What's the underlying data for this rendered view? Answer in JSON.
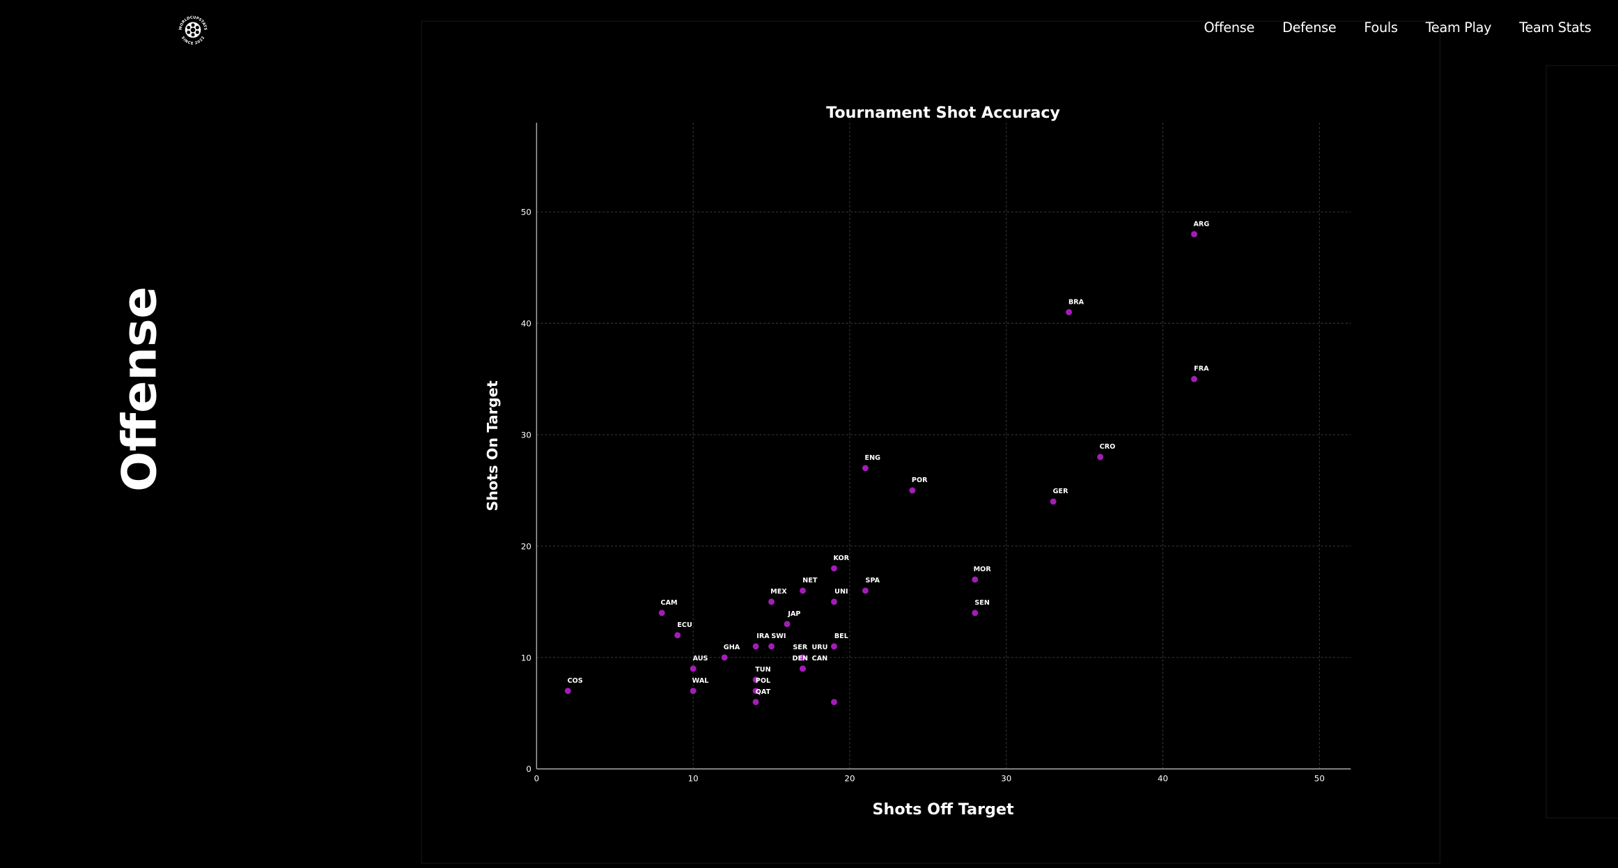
{
  "nav": {
    "items": [
      "Offense",
      "Defense",
      "Fouls",
      "Team Play",
      "Team Stats"
    ]
  },
  "logo": {
    "text_top": "WORLDCUPSTATS",
    "text_bottom": "SINCE 2022"
  },
  "page_title": "Offense",
  "colors": {
    "point": "#a41cb8",
    "grid": "#444444",
    "axis": "#aaaaaa",
    "background": "#000000"
  },
  "chart_data": {
    "type": "scatter",
    "title": "Tournament Shot Accuracy",
    "xlabel": "Shots Off Target",
    "ylabel": "Shots On Target",
    "xlim": [
      0,
      52
    ],
    "ylim": [
      0,
      58
    ],
    "xticks": [
      0,
      10,
      20,
      30,
      40,
      50
    ],
    "yticks": [
      0,
      10,
      20,
      30,
      40,
      50
    ],
    "grid": true,
    "points": [
      {
        "label": "ARG",
        "x": 42,
        "y": 48
      },
      {
        "label": "BRA",
        "x": 34,
        "y": 41
      },
      {
        "label": "FRA",
        "x": 42,
        "y": 35
      },
      {
        "label": "CRO",
        "x": 36,
        "y": 28
      },
      {
        "label": "ENG",
        "x": 21,
        "y": 27
      },
      {
        "label": "POR",
        "x": 24,
        "y": 25
      },
      {
        "label": "GER",
        "x": 33,
        "y": 24
      },
      {
        "label": "KOR",
        "x": 19,
        "y": 18
      },
      {
        "label": "MOR",
        "x": 28,
        "y": 17
      },
      {
        "label": "NET",
        "x": 17,
        "y": 16
      },
      {
        "label": "SPA",
        "x": 21,
        "y": 16
      },
      {
        "label": "MEX",
        "x": 15,
        "y": 15
      },
      {
        "label": "UNI",
        "x": 19,
        "y": 15
      },
      {
        "label": "CAM",
        "x": 8,
        "y": 14
      },
      {
        "label": "SEN",
        "x": 28,
        "y": 14
      },
      {
        "label": "JAP",
        "x": 16,
        "y": 13
      },
      {
        "label": "ECU",
        "x": 9,
        "y": 12
      },
      {
        "label": "IRA",
        "x": 14,
        "y": 11
      },
      {
        "label": "SWI",
        "x": 15,
        "y": 11
      },
      {
        "label": "BEL",
        "x": 19,
        "y": 11
      },
      {
        "label": "GHA",
        "x": 12,
        "y": 10
      },
      {
        "label": "SER",
        "x": 17,
        "y": 10
      },
      {
        "label": "URU",
        "x": 17,
        "y": 10
      },
      {
        "label": "AUS",
        "x": 10,
        "y": 9
      },
      {
        "label": "DEN",
        "x": 17,
        "y": 9
      },
      {
        "label": "CAN",
        "x": 17,
        "y": 9
      },
      {
        "label": "TUN",
        "x": 14,
        "y": 8
      },
      {
        "label": "COS",
        "x": 2,
        "y": 7
      },
      {
        "label": "WAL",
        "x": 10,
        "y": 7
      },
      {
        "label": "POL",
        "x": 14,
        "y": 7
      },
      {
        "label": "QAT",
        "x": 14,
        "y": 6
      },
      {
        "label": "",
        "x": 19,
        "y": 6
      }
    ]
  }
}
